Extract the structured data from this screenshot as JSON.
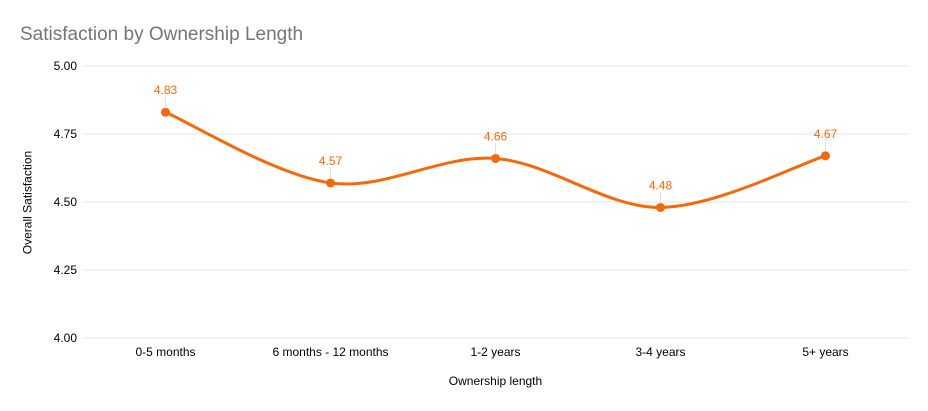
{
  "chart_data": {
    "type": "line",
    "smooth": true,
    "title": "Satisfaction by Ownership Length",
    "xlabel": "Ownership length",
    "ylabel": "Overall Satisfaction",
    "categories": [
      "0-5 months",
      "6 months - 12 months",
      "1-2 years",
      "3-4 years",
      "5+ years"
    ],
    "series": [
      {
        "name": "Overall Satisfaction",
        "values": [
          4.83,
          4.57,
          4.66,
          4.48,
          4.67
        ],
        "point_labels": [
          "4.83",
          "4.57",
          "4.66",
          "4.48",
          "4.67"
        ],
        "color": "#F6690B"
      }
    ],
    "ylim": [
      4.0,
      5.0
    ],
    "yticks": [
      {
        "value": 5.0,
        "label": "5.00"
      },
      {
        "value": 4.75,
        "label": "4.75"
      },
      {
        "value": 4.5,
        "label": "4.50"
      },
      {
        "value": 4.25,
        "label": "4.25"
      },
      {
        "value": 4.0,
        "label": "4.00"
      }
    ],
    "grid": true,
    "legend": "none",
    "colors": {
      "background": "#FFFFFF",
      "title_text": "#757575",
      "axis_text": "#000000",
      "gridline": "#E6E6E6",
      "label_leader": "#E0E0E0",
      "series": "#F6690B"
    }
  }
}
